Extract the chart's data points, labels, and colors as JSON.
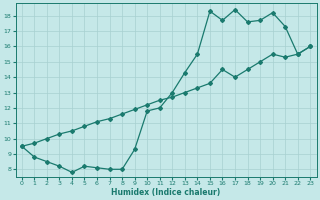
{
  "xlabel": "Humidex (Indice chaleur)",
  "ylabel": "",
  "bg_color": "#c5e8e8",
  "grid_color": "#b0d8d8",
  "line_color": "#1a7a6e",
  "xlim": [
    -0.5,
    23.5
  ],
  "ylim": [
    7.5,
    18.8
  ],
  "xticks": [
    0,
    1,
    2,
    3,
    4,
    5,
    6,
    7,
    8,
    9,
    10,
    11,
    12,
    13,
    14,
    15,
    16,
    17,
    18,
    19,
    20,
    21,
    22,
    23
  ],
  "yticks": [
    8,
    9,
    10,
    11,
    12,
    13,
    14,
    15,
    16,
    17,
    18
  ],
  "curve1_x": [
    0,
    1,
    2,
    3,
    4,
    5,
    6,
    7,
    8,
    9,
    10,
    11,
    12,
    13,
    14,
    15,
    16,
    17,
    18,
    19,
    20,
    21,
    22,
    23
  ],
  "curve1_y": [
    9.5,
    8.8,
    8.5,
    8.2,
    7.8,
    8.2,
    8.1,
    8.0,
    8.0,
    9.3,
    11.8,
    12.0,
    13.0,
    14.3,
    15.5,
    18.3,
    17.7,
    18.4,
    17.6,
    17.7,
    18.2,
    17.3,
    15.5,
    16.0
  ],
  "curve2_x": [
    0,
    1,
    2,
    3,
    4,
    5,
    6,
    7,
    8,
    9,
    10,
    11,
    12,
    13,
    14,
    15,
    16,
    17,
    18,
    19,
    20,
    21,
    22,
    23
  ],
  "curve2_y": [
    9.5,
    9.7,
    10.0,
    10.3,
    10.5,
    10.8,
    11.1,
    11.3,
    11.6,
    11.9,
    12.2,
    12.5,
    12.7,
    13.0,
    13.3,
    13.6,
    14.5,
    14.0,
    14.5,
    15.0,
    15.5,
    15.3,
    15.5,
    16.0
  ]
}
